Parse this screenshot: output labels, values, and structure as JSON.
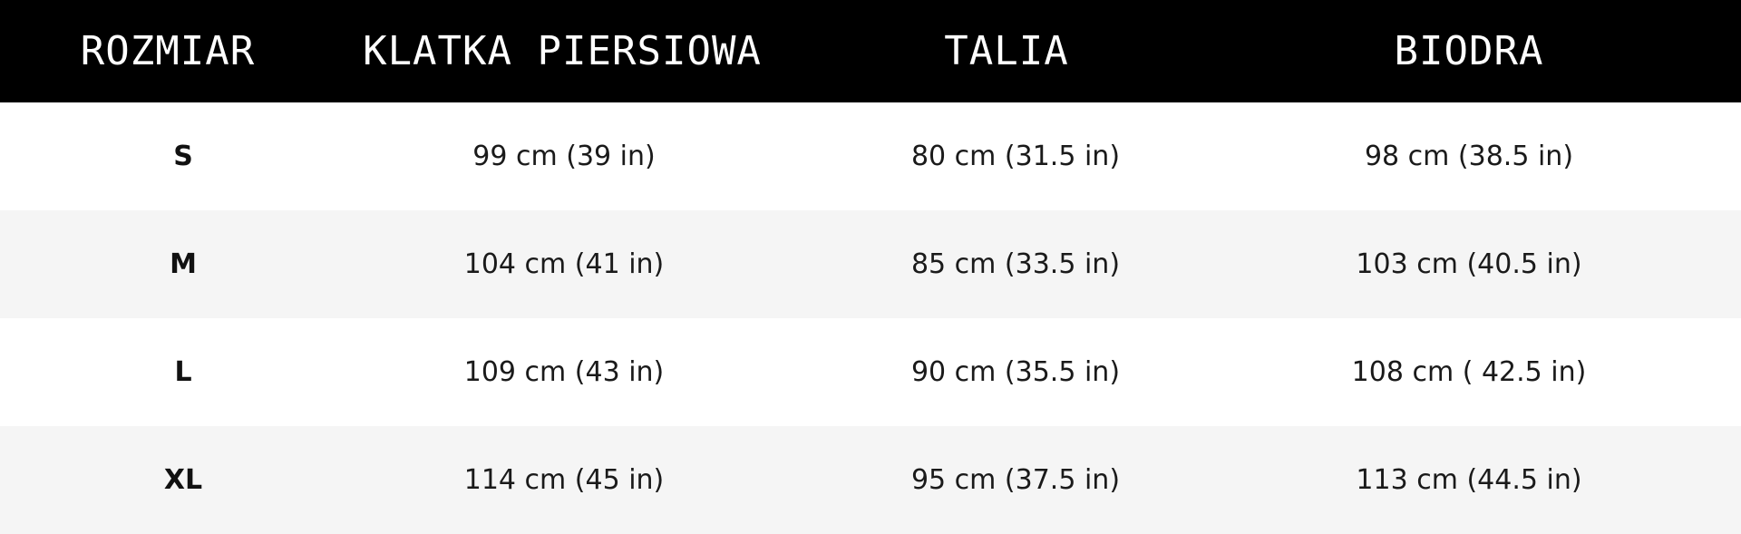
{
  "table": {
    "headers": [
      "ROZMIAR",
      "KLATKA PIERSIOWA",
      "TALIA",
      "BIODRA"
    ],
    "rows": [
      [
        "S",
        "99 cm (39 in)",
        "80 cm (31.5 in)",
        "98 cm (38.5 in)"
      ],
      [
        "M",
        "104 cm (41 in)",
        "85 cm (33.5 in)",
        "103 cm (40.5 in)"
      ],
      [
        "L",
        "109 cm (43 in)",
        "90 cm (35.5 in)",
        "108 cm ( 42.5 in)"
      ],
      [
        "XL",
        "114 cm (45 in)",
        "95 cm (37.5 in)",
        "113 cm (44.5 in)"
      ]
    ]
  },
  "colors": {
    "header_background": "#000000",
    "header_text": "#ffffff",
    "row_odd": "#ffffff",
    "row_even": "#f5f5f5",
    "body_text": "#1a1a1a"
  }
}
